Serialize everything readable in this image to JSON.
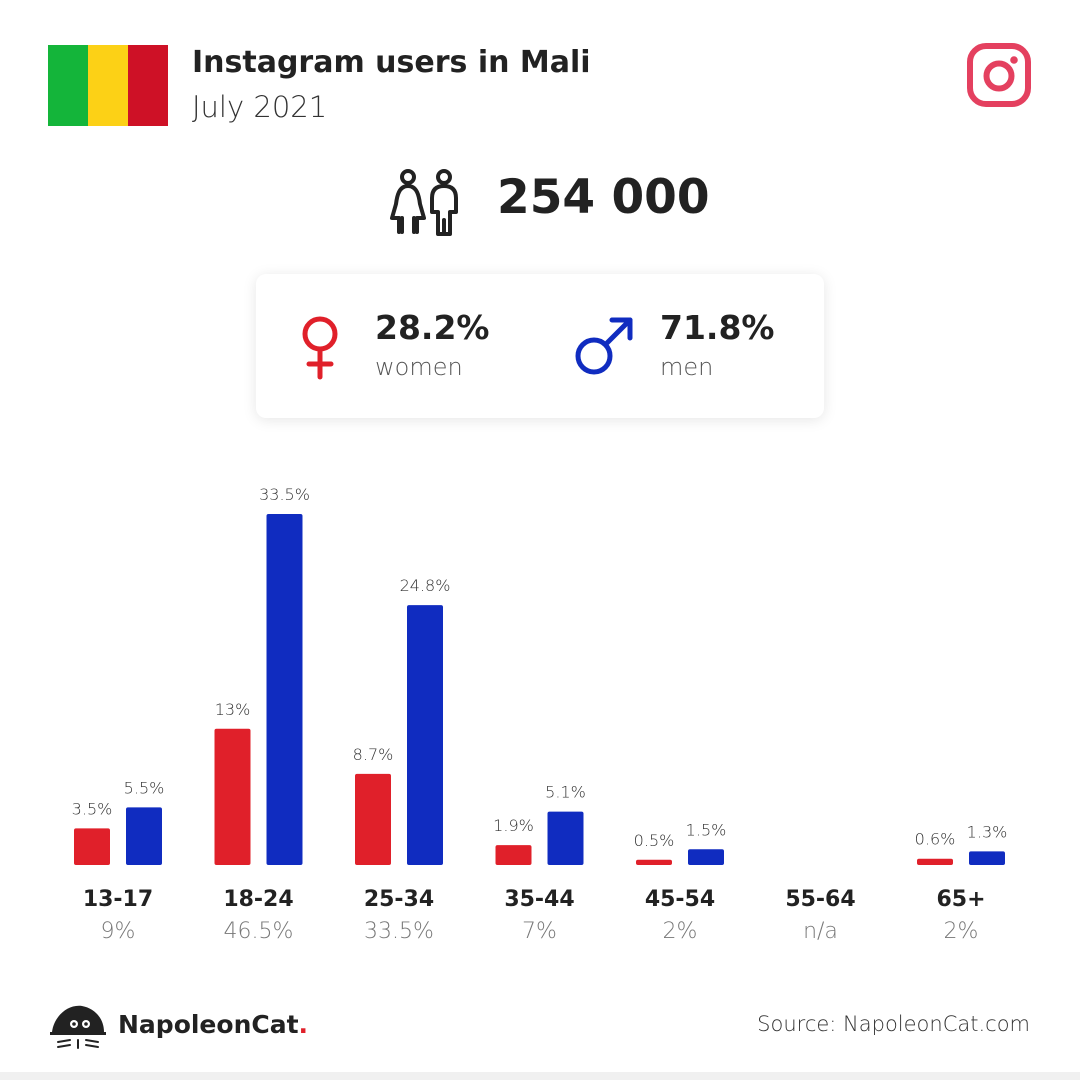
{
  "header": {
    "title": "Instagram users in Mali",
    "subtitle": "July 2021",
    "flag_colors": [
      "#14b53a",
      "#fcd116",
      "#ce1126"
    ],
    "platform_icon": "instagram-icon",
    "platform_color": "#e4405f"
  },
  "summary": {
    "total": "254 000",
    "icon": "people-icon"
  },
  "gender": {
    "women_pct": "28.2%",
    "women_label": "women",
    "men_pct": "71.8%",
    "men_label": "men",
    "women_color": "#e0202a",
    "men_color": "#102cc0"
  },
  "chart_data": {
    "type": "bar",
    "categories": [
      "13-17",
      "18-24",
      "25-34",
      "35-44",
      "45-54",
      "55-64",
      "65+"
    ],
    "category_totals": [
      "9%",
      "46.5%",
      "33.5%",
      "7%",
      "2%",
      "n/a",
      "2%"
    ],
    "series": [
      {
        "name": "women",
        "color": "#e0202a",
        "values": [
          3.5,
          13,
          8.7,
          1.9,
          0.5,
          null,
          0.6
        ],
        "labels": [
          "3.5%",
          "13%",
          "8.7%",
          "1.9%",
          "0.5%",
          "",
          "0.6%"
        ]
      },
      {
        "name": "men",
        "color": "#102cc0",
        "values": [
          5.5,
          33.5,
          24.8,
          5.1,
          1.5,
          null,
          1.3
        ],
        "labels": [
          "5.5%",
          "33.5%",
          "24.8%",
          "5.1%",
          "1.5%",
          "",
          "1.3%"
        ]
      }
    ],
    "ylim": [
      0,
      33.5
    ]
  },
  "footer": {
    "brand": "NapoleonCat",
    "brand_dot": ".",
    "source": "Source: NapoleonCat.com"
  }
}
